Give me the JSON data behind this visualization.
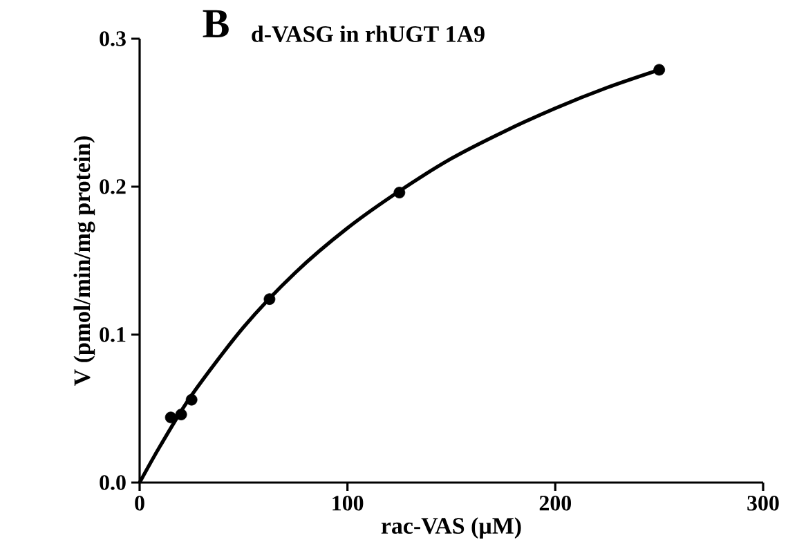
{
  "chart_data": {
    "type": "scatter",
    "title": "B",
    "subtitle": "d-VASG in rhUGT 1A9",
    "xlabel": "rac-VAS (µM)",
    "ylabel": "V (pmol/min/mg protein)",
    "xlim": [
      0,
      300
    ],
    "xticks": [
      0,
      100,
      200,
      300
    ],
    "ylim": [
      0.0,
      0.3
    ],
    "yticks": [
      {
        "value": 0.0,
        "label": "0.0"
      },
      {
        "value": 0.1,
        "label": "0.1"
      },
      {
        "value": 0.2,
        "label": "0.2"
      },
      {
        "value": 0.3,
        "label": "0.3"
      }
    ],
    "series": [
      {
        "color": "#000000",
        "marker": "circle",
        "x": [
          15,
          20,
          25,
          62.5,
          125,
          250
        ],
        "values": [
          0.044,
          0.046,
          0.056,
          0.124,
          0.196,
          0.279
        ]
      },
      {
        "type": "line",
        "color": "#000000",
        "marker": "none",
        "line_style": "solid",
        "x": [
          0,
          10,
          25,
          50,
          75,
          100,
          125,
          150,
          175,
          200,
          225,
          250
        ],
        "values": [
          0.0,
          0.025,
          0.059,
          0.105,
          0.142,
          0.172,
          0.197,
          0.219,
          0.237,
          0.253,
          0.267,
          0.279
        ]
      }
    ]
  }
}
